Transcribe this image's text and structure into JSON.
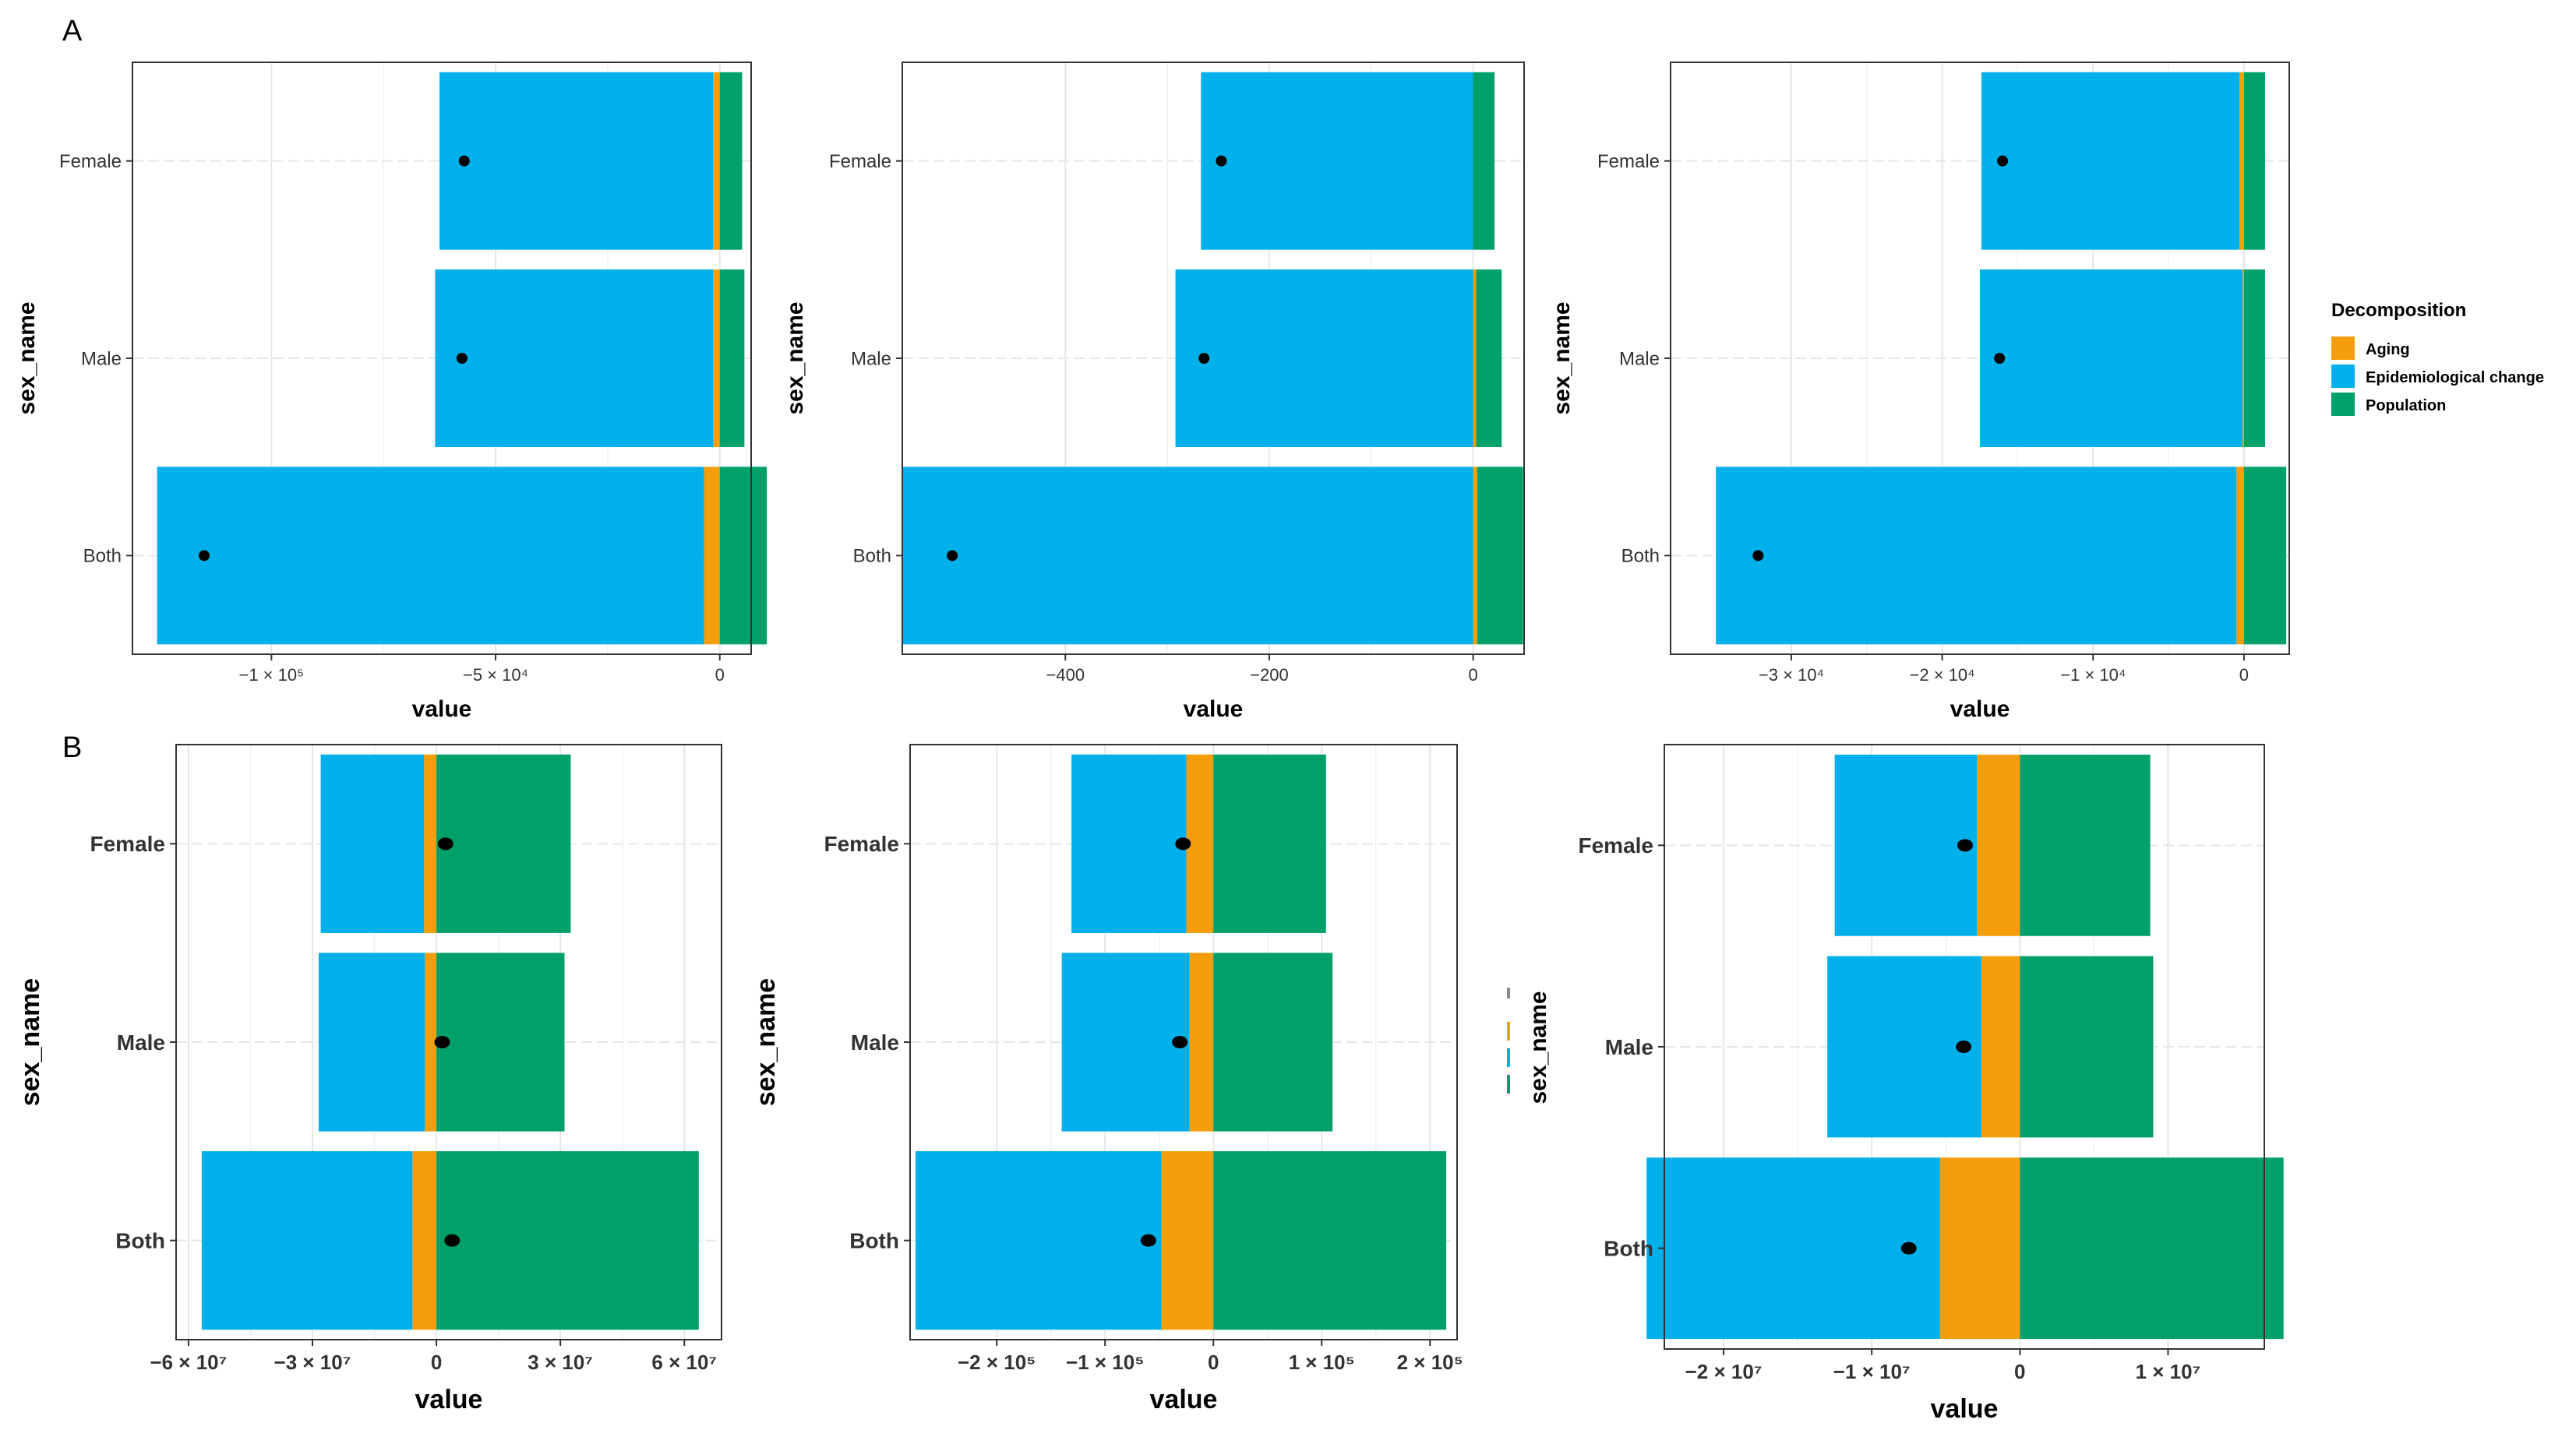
{
  "panel_labels": [
    "A",
    "B"
  ],
  "legend": {
    "title": "Decomposition",
    "items": [
      {
        "label": "Aging",
        "color": "#F59E0B"
      },
      {
        "label": "Epidemiological change",
        "color": "#00B0EB"
      },
      {
        "label": "Population",
        "color": "#00A06B"
      }
    ]
  },
  "stray_axis_label": "sex_name",
  "chart_data": [
    {
      "type": "bar",
      "stacked": true,
      "orientation": "horizontal",
      "panel": "A",
      "categories": [
        "Female",
        "Male",
        "Both"
      ],
      "xlabel": "value",
      "ylabel": "sex_name",
      "xlim": [
        -131000,
        7000
      ],
      "xticks": [
        {
          "v": -100000,
          "label": "−1 × 10⁵"
        },
        {
          "v": -50000,
          "label": "−5 × 10⁴"
        },
        {
          "v": 0,
          "label": "0"
        }
      ],
      "series": [
        {
          "name": "Aging",
          "color": "#F59E0B",
          "values": [
            -1500,
            -1500,
            -3500
          ]
        },
        {
          "name": "Epidemiological change",
          "color": "#00B0EB",
          "values": [
            -61000,
            -62000,
            -122000
          ]
        },
        {
          "name": "Population",
          "color": "#00A06B",
          "values": [
            5000,
            5500,
            10500
          ]
        }
      ],
      "net": [
        -57000,
        -57500,
        -115000
      ]
    },
    {
      "type": "bar",
      "stacked": true,
      "orientation": "horizontal",
      "panel": "A",
      "categories": [
        "Female",
        "Male",
        "Both"
      ],
      "xlabel": "value",
      "ylabel": "sex_name",
      "xlim": [
        -560,
        50
      ],
      "xticks": [
        {
          "v": -400,
          "label": "−400"
        },
        {
          "v": -200,
          "label": "−200"
        },
        {
          "v": 0,
          "label": "0"
        }
      ],
      "series": [
        {
          "name": "Aging",
          "color": "#F59E0B",
          "values": [
            0,
            3,
            4
          ]
        },
        {
          "name": "Epidemiological change",
          "color": "#00B0EB",
          "values": [
            -267,
            -292,
            -560
          ]
        },
        {
          "name": "Population",
          "color": "#00A06B",
          "values": [
            21,
            25,
            45
          ]
        }
      ],
      "net": [
        -247,
        -264,
        -511
      ]
    },
    {
      "type": "bar",
      "stacked": true,
      "orientation": "horizontal",
      "panel": "A",
      "categories": [
        "Female",
        "Male",
        "Both"
      ],
      "xlabel": "value",
      "ylabel": "sex_name",
      "xlim": [
        -38000,
        3000
      ],
      "xticks": [
        {
          "v": -30000,
          "label": "−3 × 10⁴"
        },
        {
          "v": -20000,
          "label": "−2 × 10⁴"
        },
        {
          "v": -10000,
          "label": "−1 × 10⁴"
        },
        {
          "v": 0,
          "label": "0"
        }
      ],
      "series": [
        {
          "name": "Aging",
          "color": "#F59E0B",
          "values": [
            -300,
            -100,
            -500
          ]
        },
        {
          "name": "Epidemiological change",
          "color": "#00B0EB",
          "values": [
            -17100,
            -17400,
            -34500
          ]
        },
        {
          "name": "Population",
          "color": "#00A06B",
          "values": [
            1400,
            1400,
            2800
          ]
        }
      ],
      "net": [
        -16000,
        -16200,
        -32200
      ]
    },
    {
      "type": "bar",
      "stacked": true,
      "orientation": "horizontal",
      "panel": "B",
      "categories": [
        "Female",
        "Male",
        "Both"
      ],
      "xlabel": "value",
      "ylabel": "sex_name",
      "xlim": [
        -63000000,
        69000000
      ],
      "xticks": [
        {
          "v": -60000000,
          "label": "−6 × 10⁷"
        },
        {
          "v": -30000000,
          "label": "−3 × 10⁷"
        },
        {
          "v": 0,
          "label": "0"
        },
        {
          "v": 30000000,
          "label": "3 × 10⁷"
        },
        {
          "v": 60000000,
          "label": "6 × 10⁷"
        }
      ],
      "series": [
        {
          "name": "Aging",
          "color": "#F59E0B",
          "values": [
            -3000000,
            -2800000,
            -5800000
          ]
        },
        {
          "name": "Epidemiological change",
          "color": "#00B0EB",
          "values": [
            -25000000,
            -25700000,
            -51000000
          ]
        },
        {
          "name": "Population",
          "color": "#00A06B",
          "values": [
            32500000,
            31000000,
            63500000
          ]
        }
      ],
      "net": [
        2200000,
        1400000,
        3800000
      ]
    },
    {
      "type": "bar",
      "stacked": true,
      "orientation": "horizontal",
      "panel": "B",
      "categories": [
        "Female",
        "Male",
        "Both"
      ],
      "xlabel": "value",
      "ylabel": "sex_name",
      "xlim": [
        -280000,
        225000
      ],
      "xticks": [
        {
          "v": -200000,
          "label": "−2 × 10⁵"
        },
        {
          "v": -100000,
          "label": "−1 × 10⁵"
        },
        {
          "v": 0,
          "label": "0"
        },
        {
          "v": 100000,
          "label": "1 × 10⁵"
        },
        {
          "v": 200000,
          "label": "2 × 10⁵"
        }
      ],
      "series": [
        {
          "name": "Aging",
          "color": "#F59E0B",
          "values": [
            -25000,
            -22000,
            -48000
          ]
        },
        {
          "name": "Epidemiological change",
          "color": "#00B0EB",
          "values": [
            -106000,
            -118000,
            -227000
          ]
        },
        {
          "name": "Population",
          "color": "#00A06B",
          "values": [
            104000,
            110000,
            215000
          ]
        }
      ],
      "net": [
        -28000,
        -31000,
        -60000
      ]
    },
    {
      "type": "bar",
      "stacked": true,
      "orientation": "horizontal",
      "panel": "B",
      "categories": [
        "Female",
        "Male",
        "Both"
      ],
      "xlabel": "value",
      "ylabel": "",
      "xlim": [
        -24000000,
        16500000
      ],
      "xticks": [
        {
          "v": -20000000,
          "label": "−2 × 10⁷"
        },
        {
          "v": -10000000,
          "label": "−1 × 10⁷"
        },
        {
          "v": 0,
          "label": "0"
        },
        {
          "v": 10000000,
          "label": "1 × 10⁷"
        }
      ],
      "series": [
        {
          "name": "Aging",
          "color": "#F59E0B",
          "values": [
            -2900000,
            -2600000,
            -5400000
          ]
        },
        {
          "name": "Epidemiological change",
          "color": "#00B0EB",
          "values": [
            -9600000,
            -10400000,
            -19800000
          ]
        },
        {
          "name": "Population",
          "color": "#00A06B",
          "values": [
            8800000,
            9000000,
            17800000
          ]
        }
      ],
      "net": [
        -3700000,
        -3800000,
        -7500000
      ]
    }
  ]
}
